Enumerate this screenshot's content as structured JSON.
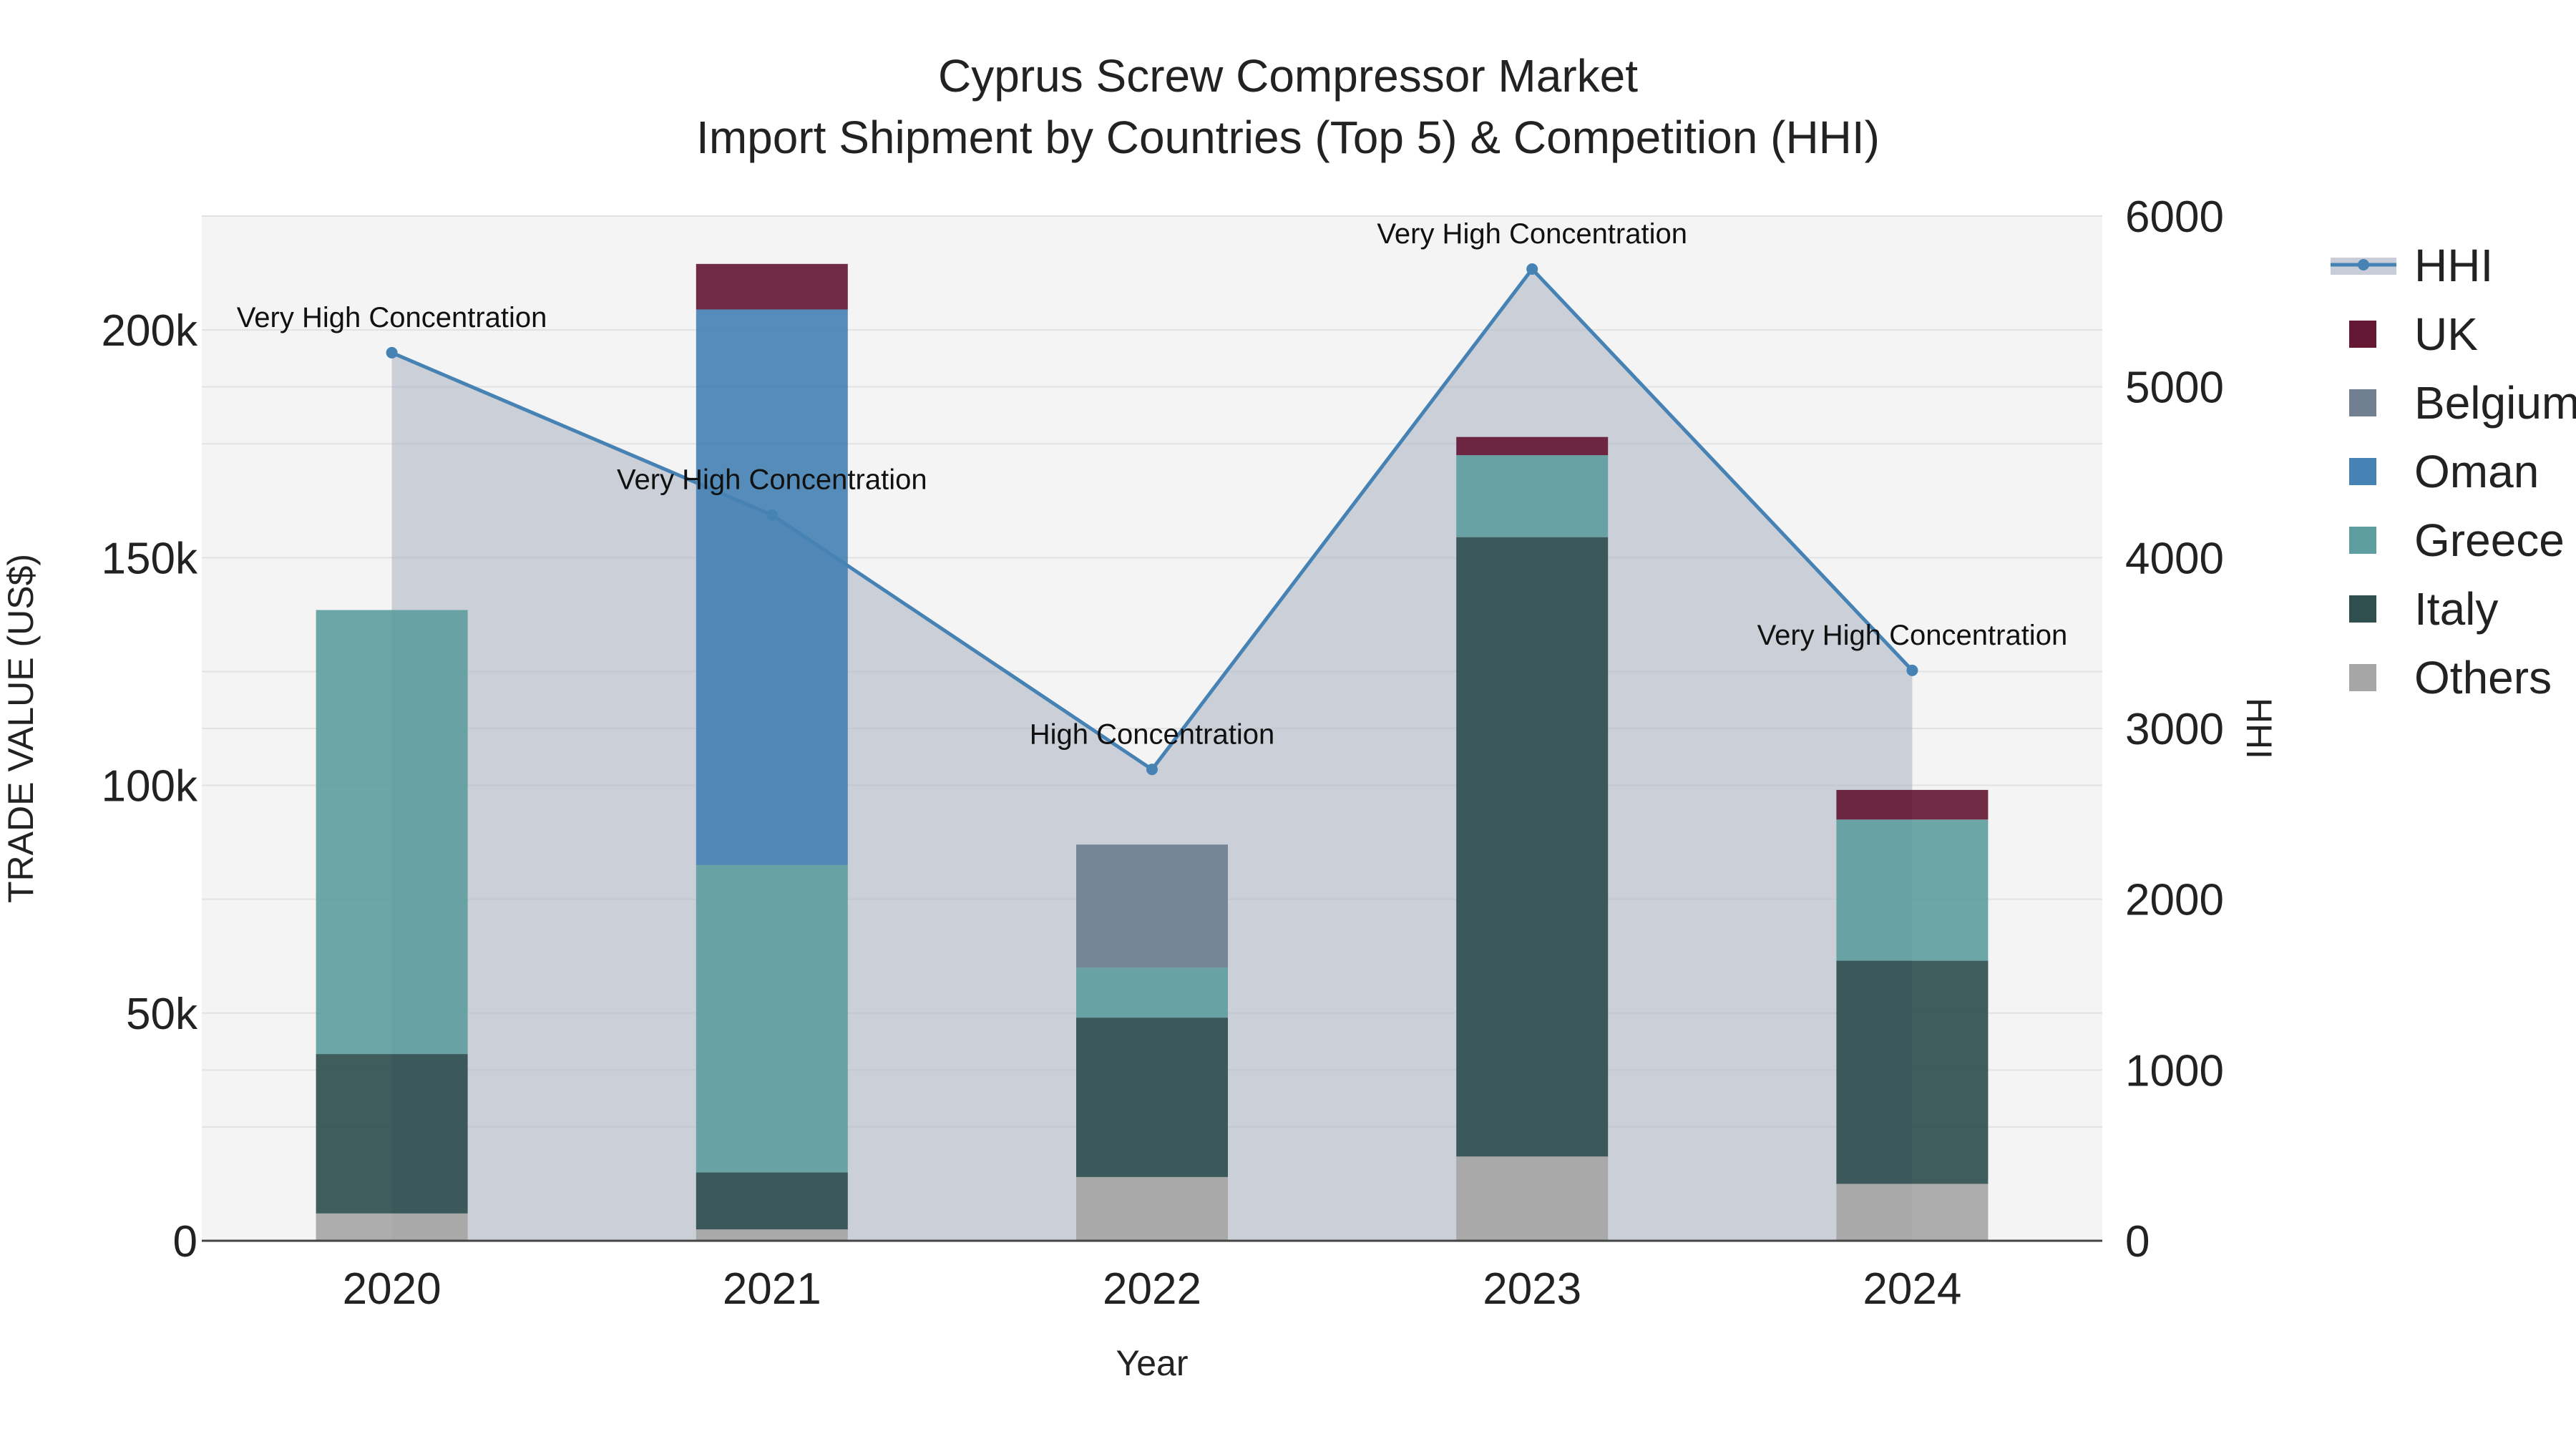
{
  "chart_data": {
    "type": "bar",
    "stacked": true,
    "title_line1": "Cyprus Screw Compressor Market",
    "title_line2": "Import Shipment by Countries (Top 5) & Competition (HHI)",
    "xlabel": "Year",
    "ylabel": "TRADE VALUE (US$)",
    "y2label": "HHI",
    "categories": [
      "2020",
      "2021",
      "2022",
      "2023",
      "2024"
    ],
    "ylim": [
      0,
      225000
    ],
    "y_ticks": [
      0,
      50000,
      100000,
      150000,
      200000
    ],
    "y_tick_labels": [
      "0",
      "50k",
      "100k",
      "150k",
      "200k"
    ],
    "y2lim": [
      0,
      6000
    ],
    "y2_ticks": [
      0,
      1000,
      2000,
      3000,
      4000,
      5000,
      6000
    ],
    "y2_tick_labels": [
      "0",
      "1000",
      "2000",
      "3000",
      "4000",
      "5000",
      "6000"
    ],
    "series": [
      {
        "name": "Others",
        "color": "#a6a6a6",
        "values": [
          6000,
          2500,
          14000,
          18500,
          12500
        ]
      },
      {
        "name": "Italy",
        "color": "#2f4f4f",
        "values": [
          35000,
          12500,
          35000,
          136000,
          49000
        ]
      },
      {
        "name": "Greece",
        "color": "#5f9ea0",
        "values": [
          97500,
          67500,
          11000,
          18000,
          31000
        ]
      },
      {
        "name": "Oman",
        "color": "#4682b4",
        "values": [
          0,
          122000,
          0,
          0,
          0
        ]
      },
      {
        "name": "Belgium",
        "color": "#708090",
        "values": [
          0,
          0,
          27000,
          0,
          0
        ]
      },
      {
        "name": "UK",
        "color": "#641834",
        "values": [
          0,
          10000,
          0,
          4000,
          6500
        ]
      }
    ],
    "hhi": {
      "name": "HHI",
      "color": "#4682b4",
      "values": [
        5200,
        4250,
        2760,
        5690,
        3340
      ],
      "annotations": [
        "Very High Concentration",
        "Very High Concentration",
        "High Concentration",
        "Very High Concentration",
        "Very High Concentration"
      ]
    },
    "legend_order": [
      "HHI",
      "UK",
      "Belgium",
      "Oman",
      "Greece",
      "Italy",
      "Others"
    ],
    "legend_position": "right"
  }
}
